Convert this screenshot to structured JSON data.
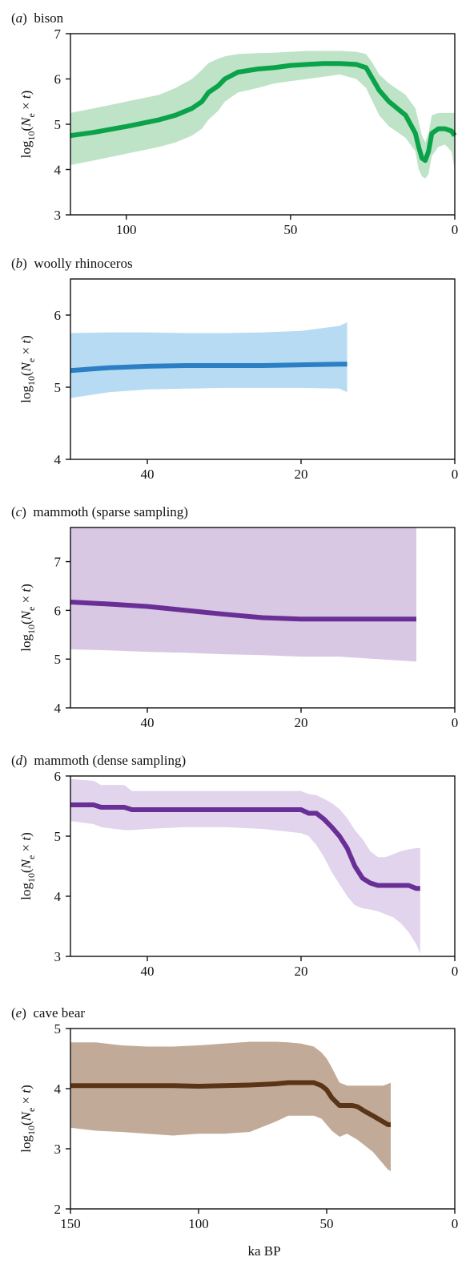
{
  "figure": {
    "xlabel": "ka BP"
  },
  "chart_data": [
    {
      "type": "area",
      "label_letter": "a",
      "title": "bison",
      "ylabel": "log10(Ne × t)",
      "xlim": [
        117,
        0
      ],
      "ylim": [
        3,
        7
      ],
      "xticks": [
        100,
        50,
        0
      ],
      "yticks": [
        3,
        4,
        5,
        6,
        7
      ],
      "color": "#0aa34a",
      "band_color": "#bfe3c7",
      "x": [
        117,
        110,
        100,
        90,
        85,
        80,
        77,
        75,
        72,
        70,
        66,
        60,
        55,
        50,
        45,
        40,
        35,
        30,
        27,
        25,
        23,
        20,
        15,
        12,
        11,
        10,
        9,
        8,
        7,
        5,
        3,
        1,
        0
      ],
      "mean": [
        4.75,
        4.82,
        4.95,
        5.1,
        5.2,
        5.35,
        5.5,
        5.7,
        5.85,
        6.0,
        6.15,
        6.22,
        6.25,
        6.3,
        6.32,
        6.34,
        6.34,
        6.32,
        6.25,
        6.0,
        5.75,
        5.5,
        5.2,
        4.8,
        4.5,
        4.25,
        4.2,
        4.4,
        4.8,
        4.9,
        4.9,
        4.85,
        4.75
      ],
      "lower": [
        4.1,
        4.2,
        4.35,
        4.5,
        4.6,
        4.75,
        4.9,
        5.1,
        5.3,
        5.5,
        5.7,
        5.8,
        5.9,
        5.95,
        6.0,
        6.05,
        6.1,
        6.0,
        5.8,
        5.5,
        5.2,
        4.95,
        4.7,
        4.4,
        4.0,
        3.85,
        3.8,
        3.9,
        4.3,
        4.5,
        4.55,
        4.4,
        4.0
      ],
      "upper": [
        5.25,
        5.35,
        5.5,
        5.65,
        5.8,
        6.0,
        6.2,
        6.35,
        6.45,
        6.5,
        6.55,
        6.57,
        6.58,
        6.6,
        6.62,
        6.62,
        6.62,
        6.6,
        6.55,
        6.35,
        6.1,
        5.9,
        5.65,
        5.35,
        5.05,
        4.75,
        4.6,
        4.8,
        5.2,
        5.25,
        5.25,
        5.25,
        5.25
      ]
    },
    {
      "type": "area",
      "label_letter": "b",
      "title": "woolly rhinoceros",
      "ylabel": "log10(Ne × t)",
      "xlim": [
        50,
        0
      ],
      "ylim": [
        4,
        6.5
      ],
      "xticks": [
        40,
        20,
        0
      ],
      "yticks": [
        4,
        5,
        6
      ],
      "color": "#2b7fc4",
      "band_color": "#b7dbf3",
      "x": [
        50,
        45,
        40,
        35,
        30,
        25,
        20,
        15,
        14
      ],
      "mean": [
        5.23,
        5.27,
        5.29,
        5.3,
        5.3,
        5.3,
        5.31,
        5.32,
        5.32
      ],
      "lower": [
        4.85,
        4.93,
        4.97,
        4.98,
        4.99,
        4.99,
        4.99,
        4.98,
        4.93
      ],
      "upper": [
        5.75,
        5.76,
        5.76,
        5.75,
        5.75,
        5.76,
        5.78,
        5.85,
        5.9
      ]
    },
    {
      "type": "area",
      "label_letter": "c",
      "title": "mammoth (sparse sampling)",
      "ylabel": "log10(Ne × t)",
      "xlim": [
        50,
        0
      ],
      "ylim": [
        4,
        7.7
      ],
      "xticks": [
        40,
        20,
        0
      ],
      "yticks": [
        4,
        5,
        6,
        7
      ],
      "color": "#6a2f96",
      "band_color": "#d9c8e4",
      "x": [
        50,
        45,
        40,
        35,
        30,
        25,
        20,
        15,
        10,
        5
      ],
      "mean": [
        6.17,
        6.13,
        6.08,
        6.0,
        5.92,
        5.85,
        5.82,
        5.82,
        5.82,
        5.82
      ],
      "lower": [
        5.2,
        5.18,
        5.15,
        5.13,
        5.1,
        5.08,
        5.05,
        5.05,
        5.0,
        4.95
      ],
      "upper": [
        7.7,
        7.7,
        7.7,
        7.7,
        7.7,
        7.7,
        7.7,
        7.7,
        7.7,
        7.7
      ]
    },
    {
      "type": "area",
      "label_letter": "d",
      "title": "mammoth (dense sampling)",
      "ylabel": "log10(Ne × t)",
      "xlim": [
        50,
        0
      ],
      "ylim": [
        3,
        6
      ],
      "xticks": [
        40,
        20,
        0
      ],
      "yticks": [
        3,
        4,
        5,
        6
      ],
      "color": "#6a2f96",
      "band_color": "#e1d4ec",
      "x": [
        50,
        47,
        46,
        43,
        42,
        40,
        35,
        30,
        25,
        20,
        19,
        18,
        17,
        16,
        15,
        14,
        13,
        12,
        11,
        10,
        9,
        8,
        7,
        6,
        5,
        4.5
      ],
      "mean": [
        5.52,
        5.52,
        5.48,
        5.48,
        5.44,
        5.44,
        5.44,
        5.44,
        5.44,
        5.44,
        5.38,
        5.38,
        5.28,
        5.15,
        5.0,
        4.8,
        4.5,
        4.3,
        4.22,
        4.18,
        4.18,
        4.18,
        4.18,
        4.18,
        4.13,
        4.13
      ],
      "lower": [
        5.25,
        5.2,
        5.15,
        5.1,
        5.1,
        5.12,
        5.15,
        5.15,
        5.12,
        5.05,
        5.0,
        4.85,
        4.65,
        4.4,
        4.2,
        4.0,
        3.85,
        3.8,
        3.78,
        3.75,
        3.7,
        3.65,
        3.55,
        3.4,
        3.2,
        3.05
      ],
      "upper": [
        5.95,
        5.92,
        5.85,
        5.85,
        5.75,
        5.75,
        5.75,
        5.75,
        5.75,
        5.75,
        5.7,
        5.68,
        5.62,
        5.55,
        5.45,
        5.3,
        5.1,
        4.95,
        4.75,
        4.65,
        4.65,
        4.7,
        4.75,
        4.78,
        4.8,
        4.8
      ]
    },
    {
      "type": "area",
      "label_letter": "e",
      "title": "cave bear",
      "ylabel": "log10(Ne × t)",
      "xlim": [
        150,
        0
      ],
      "ylim": [
        2,
        5
      ],
      "xticks": [
        150,
        100,
        50,
        0
      ],
      "yticks": [
        2,
        3,
        4,
        5
      ],
      "color": "#5a3416",
      "band_color": "#c1ab98",
      "x": [
        150,
        140,
        130,
        120,
        110,
        100,
        90,
        80,
        70,
        65,
        60,
        55,
        52,
        50,
        48,
        45,
        42,
        40,
        38,
        35,
        32,
        30,
        28,
        26,
        25
      ],
      "mean": [
        4.05,
        4.05,
        4.05,
        4.05,
        4.05,
        4.04,
        4.05,
        4.06,
        4.08,
        4.1,
        4.1,
        4.1,
        4.05,
        3.98,
        3.85,
        3.72,
        3.72,
        3.72,
        3.7,
        3.62,
        3.55,
        3.5,
        3.45,
        3.4,
        3.4
      ],
      "lower": [
        3.35,
        3.3,
        3.28,
        3.25,
        3.22,
        3.25,
        3.25,
        3.28,
        3.45,
        3.55,
        3.55,
        3.55,
        3.5,
        3.4,
        3.3,
        3.2,
        3.25,
        3.2,
        3.15,
        3.05,
        2.95,
        2.85,
        2.75,
        2.65,
        2.63
      ],
      "upper": [
        4.77,
        4.77,
        4.72,
        4.7,
        4.7,
        4.72,
        4.75,
        4.78,
        4.78,
        4.77,
        4.75,
        4.7,
        4.6,
        4.5,
        4.35,
        4.1,
        4.05,
        4.05,
        4.05,
        4.05,
        4.05,
        4.05,
        4.05,
        4.08,
        4.1
      ]
    }
  ]
}
